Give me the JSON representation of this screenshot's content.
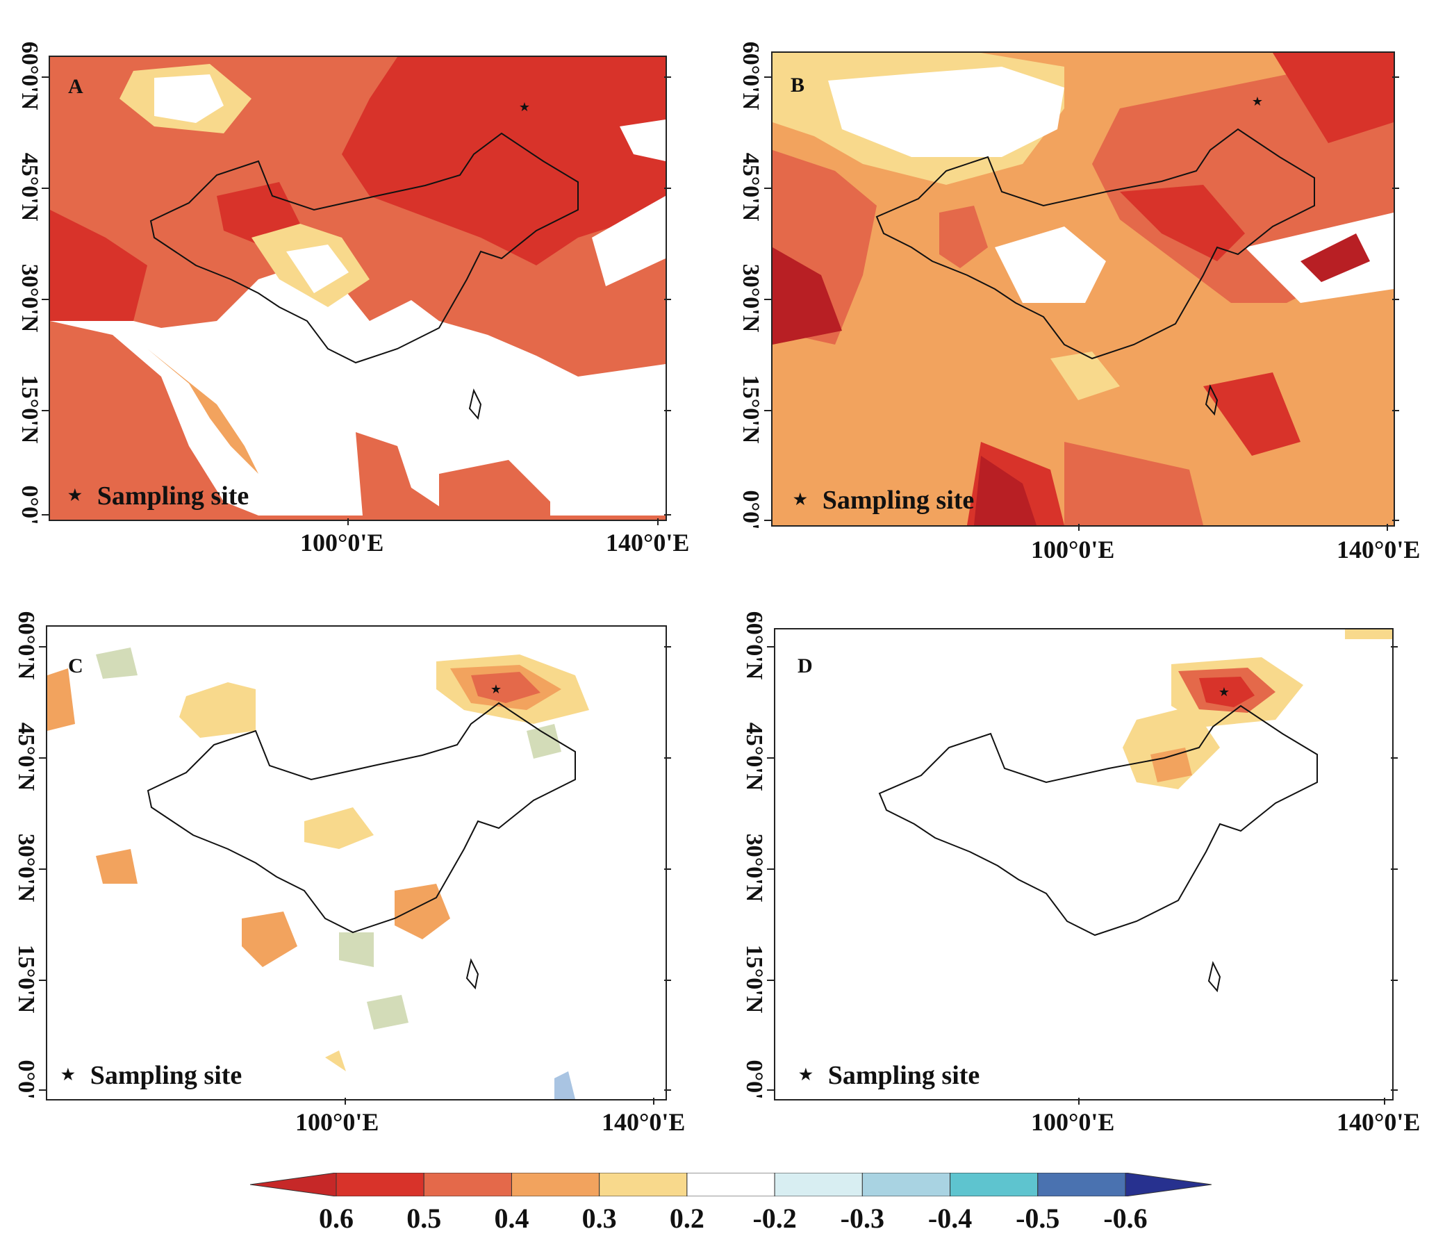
{
  "panels": [
    {
      "letter": "A",
      "legend": "Sampling site"
    },
    {
      "letter": "B",
      "legend": "Sampling site"
    },
    {
      "letter": "C",
      "legend": "Sampling site"
    },
    {
      "letter": "D",
      "legend": "Sampling site"
    }
  ],
  "axes": {
    "lat_labels": [
      "60°0'N",
      "45°0'N",
      "30°0'N",
      "15°0'N",
      "0°0'"
    ],
    "lon_labels": [
      "100°0'E",
      "140°0'E"
    ]
  },
  "colorbar": {
    "labels": [
      "0.6",
      "0.5",
      "0.4",
      "0.3",
      "0.2",
      "-0.2",
      "-0.3",
      "-0.4",
      "-0.5",
      "-0.6"
    ],
    "colors": [
      "#c62828",
      "#d8332a",
      "#e4694a",
      "#f2a35e",
      "#f8d98c",
      "#ffffff",
      "#d8eef2",
      "#a9d3e2",
      "#5ec4cf",
      "#4a72b0",
      "#27318f"
    ]
  },
  "palette": {
    "red_dark": "#b81f24",
    "red": "#d8332a",
    "orange": "#e4694a",
    "light_orange": "#f2a35e",
    "yellow": "#f8d98c",
    "sage": "#d3dcb8",
    "blue": "#a9c4e2"
  }
}
